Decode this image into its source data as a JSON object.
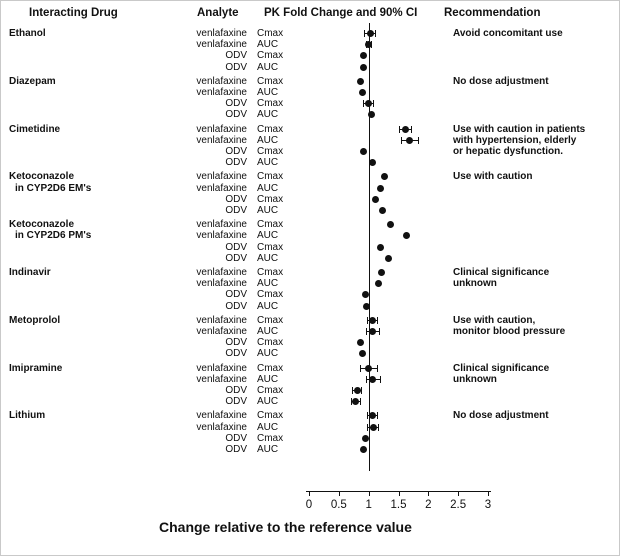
{
  "colors": {
    "foreground": "#111111",
    "background": "#ffffff"
  },
  "header": {
    "interacting_drug": "Interacting Drug",
    "analyte": "Analyte",
    "plot_title": "PK Fold Change and 90% CI",
    "recommendation": "Recommendation"
  },
  "axis": {
    "label": "Change relative to the reference value",
    "min": 0,
    "max": 3,
    "reference_line": 1,
    "ticks": [
      {
        "value": 0,
        "label": "0"
      },
      {
        "value": 0.5,
        "label": "0.5"
      },
      {
        "value": 1,
        "label": "1"
      },
      {
        "value": 1.5,
        "label": "1.5"
      },
      {
        "value": 2,
        "label": "2"
      },
      {
        "value": 2.5,
        "label": "2.5"
      },
      {
        "value": 3,
        "label": "3"
      }
    ]
  },
  "chart_data": {
    "type": "scatter",
    "subtype": "forest-plot",
    "title": "PK Fold Change and 90% CI",
    "xlabel": "Change relative to the reference value",
    "xlim": [
      0,
      3
    ],
    "reference_line": 1,
    "grid": false,
    "groups": [
      {
        "drug": [
          "Ethanol"
        ],
        "recommendation": [
          "Avoid concomitant use"
        ],
        "rows": [
          {
            "analyte": "venlafaxine",
            "metric": "Cmax",
            "value": 1.03,
            "ci": [
              0.93,
              1.12
            ]
          },
          {
            "analyte": "venlafaxine",
            "metric": "AUC",
            "value": 1.0,
            "ci": [
              0.95,
              1.06
            ]
          },
          {
            "analyte": "ODV",
            "metric": "Cmax",
            "value": 0.92,
            "ci": null
          },
          {
            "analyte": "ODV",
            "metric": "AUC",
            "value": 0.91,
            "ci": null
          }
        ]
      },
      {
        "drug": [
          "Diazepam"
        ],
        "recommendation": [
          "No dose adjustment"
        ],
        "rows": [
          {
            "analyte": "venlafaxine",
            "metric": "Cmax",
            "value": 0.87,
            "ci": null
          },
          {
            "analyte": "venlafaxine",
            "metric": "AUC",
            "value": 0.9,
            "ci": null
          },
          {
            "analyte": "ODV",
            "metric": "Cmax",
            "value": 0.99,
            "ci": [
              0.9,
              1.09
            ]
          },
          {
            "analyte": "ODV",
            "metric": "AUC",
            "value": 1.04,
            "ci": null
          }
        ]
      },
      {
        "drug": [
          "Cimetidine"
        ],
        "recommendation": [
          "Use with caution in patients",
          "with hypertension, elderly",
          "or hepatic dysfunction."
        ],
        "rows": [
          {
            "analyte": "venlafaxine",
            "metric": "Cmax",
            "value": 1.61,
            "ci": [
              1.5,
              1.72
            ]
          },
          {
            "analyte": "venlafaxine",
            "metric": "AUC",
            "value": 1.69,
            "ci": [
              1.55,
              1.84
            ]
          },
          {
            "analyte": "ODV",
            "metric": "Cmax",
            "value": 0.91,
            "ci": null
          },
          {
            "analyte": "ODV",
            "metric": "AUC",
            "value": 1.07,
            "ci": null
          }
        ]
      },
      {
        "drug": [
          "Ketoconazole",
          "in CYP2D6 EM's"
        ],
        "recommendation": [
          "Use with caution"
        ],
        "rows": [
          {
            "analyte": "venlafaxine",
            "metric": "Cmax",
            "value": 1.26,
            "ci": null
          },
          {
            "analyte": "venlafaxine",
            "metric": "AUC",
            "value": 1.19,
            "ci": null
          },
          {
            "analyte": "ODV",
            "metric": "Cmax",
            "value": 1.11,
            "ci": null
          },
          {
            "analyte": "ODV",
            "metric": "AUC",
            "value": 1.23,
            "ci": null
          }
        ]
      },
      {
        "drug": [
          "Ketoconazole",
          "in CYP2D6 PM's"
        ],
        "recommendation": [],
        "rows": [
          {
            "analyte": "venlafaxine",
            "metric": "Cmax",
            "value": 1.36,
            "ci": null
          },
          {
            "analyte": "venlafaxine",
            "metric": "AUC",
            "value": 1.63,
            "ci": null
          },
          {
            "analyte": "ODV",
            "metric": "Cmax",
            "value": 1.2,
            "ci": null
          },
          {
            "analyte": "ODV",
            "metric": "AUC",
            "value": 1.33,
            "ci": null
          }
        ]
      },
      {
        "drug": [
          "Indinavir"
        ],
        "recommendation": [
          "Clinical significance",
          "unknown"
        ],
        "rows": [
          {
            "analyte": "venlafaxine",
            "metric": "Cmax",
            "value": 1.21,
            "ci": null
          },
          {
            "analyte": "venlafaxine",
            "metric": "AUC",
            "value": 1.16,
            "ci": null
          },
          {
            "analyte": "ODV",
            "metric": "Cmax",
            "value": 0.94,
            "ci": null
          },
          {
            "analyte": "ODV",
            "metric": "AUC",
            "value": 0.97,
            "ci": null
          }
        ]
      },
      {
        "drug": [
          "Metoprolol"
        ],
        "recommendation": [
          "Use with caution,",
          "monitor blood pressure"
        ],
        "rows": [
          {
            "analyte": "venlafaxine",
            "metric": "Cmax",
            "value": 1.07,
            "ci": [
              0.98,
              1.16
            ]
          },
          {
            "analyte": "venlafaxine",
            "metric": "AUC",
            "value": 1.07,
            "ci": [
              0.95,
              1.19
            ]
          },
          {
            "analyte": "ODV",
            "metric": "Cmax",
            "value": 0.87,
            "ci": null
          },
          {
            "analyte": "ODV",
            "metric": "AUC",
            "value": 0.9,
            "ci": null
          }
        ]
      },
      {
        "drug": [
          "Imipramine"
        ],
        "recommendation": [
          "Clinical significance",
          "unknown"
        ],
        "rows": [
          {
            "analyte": "venlafaxine",
            "metric": "Cmax",
            "value": 1.0,
            "ci": [
              0.86,
              1.15
            ]
          },
          {
            "analyte": "venlafaxine",
            "metric": "AUC",
            "value": 1.07,
            "ci": [
              0.95,
              1.2
            ]
          },
          {
            "analyte": "ODV",
            "metric": "Cmax",
            "value": 0.81,
            "ci": [
              0.72,
              0.89
            ]
          },
          {
            "analyte": "ODV",
            "metric": "AUC",
            "value": 0.78,
            "ci": [
              0.7,
              0.87
            ]
          }
        ]
      },
      {
        "drug": [
          "Lithium"
        ],
        "recommendation": [
          "No dose adjustment"
        ],
        "rows": [
          {
            "analyte": "venlafaxine",
            "metric": "Cmax",
            "value": 1.06,
            "ci": [
              0.97,
              1.15
            ]
          },
          {
            "analyte": "venlafaxine",
            "metric": "AUC",
            "value": 1.08,
            "ci": [
              0.97,
              1.17
            ]
          },
          {
            "analyte": "ODV",
            "metric": "Cmax",
            "value": 0.95,
            "ci": null
          },
          {
            "analyte": "ODV",
            "metric": "AUC",
            "value": 0.92,
            "ci": null
          }
        ]
      }
    ]
  }
}
